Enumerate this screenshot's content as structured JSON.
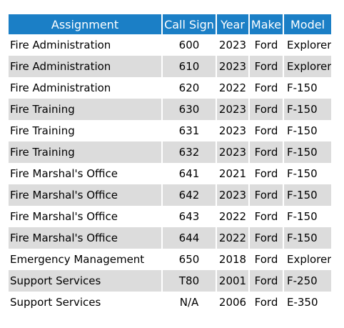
{
  "table": {
    "headers": {
      "assignment": "Assignment",
      "call_sign": "Call Sign",
      "year": "Year",
      "make": "Make",
      "model": "Model"
    },
    "rows": [
      {
        "assignment": "Fire Administration",
        "call_sign": "600",
        "year": "2023",
        "make": "Ford",
        "model": "Explorer"
      },
      {
        "assignment": "Fire Administration",
        "call_sign": "610",
        "year": "2023",
        "make": "Ford",
        "model": "Explorer"
      },
      {
        "assignment": "Fire Administration",
        "call_sign": "620",
        "year": "2022",
        "make": "Ford",
        "model": "F-150"
      },
      {
        "assignment": "Fire Training",
        "call_sign": "630",
        "year": "2023",
        "make": "Ford",
        "model": "F-150"
      },
      {
        "assignment": "Fire Training",
        "call_sign": "631",
        "year": "2023",
        "make": "Ford",
        "model": "F-150"
      },
      {
        "assignment": "Fire Training",
        "call_sign": "632",
        "year": "2023",
        "make": "Ford",
        "model": "F-150"
      },
      {
        "assignment": "Fire Marshal's Office",
        "call_sign": "641",
        "year": "2021",
        "make": "Ford",
        "model": "F-150"
      },
      {
        "assignment": "Fire Marshal's Office",
        "call_sign": "642",
        "year": "2023",
        "make": "Ford",
        "model": "F-150"
      },
      {
        "assignment": "Fire Marshal's Office",
        "call_sign": "643",
        "year": "2022",
        "make": "Ford",
        "model": "F-150"
      },
      {
        "assignment": "Fire Marshal's Office",
        "call_sign": "644",
        "year": "2022",
        "make": "Ford",
        "model": "F-150"
      },
      {
        "assignment": "Emergency Management",
        "call_sign": "650",
        "year": "2018",
        "make": "Ford",
        "model": "Explorer"
      },
      {
        "assignment": "Support Services",
        "call_sign": "T80",
        "year": "2001",
        "make": "Ford",
        "model": "F-250"
      },
      {
        "assignment": "Support Services",
        "call_sign": "N/A",
        "year": "2006",
        "make": "Ford",
        "model": "E-350"
      }
    ]
  },
  "colors": {
    "header_bg": "#1b7fc6",
    "header_text": "#ffffff",
    "alt_row_bg": "#dcdcdc"
  }
}
